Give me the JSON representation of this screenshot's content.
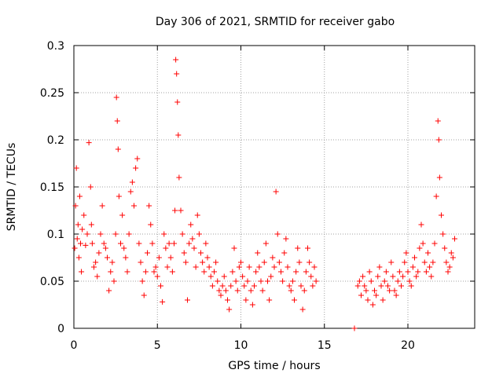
{
  "chart_data": {
    "type": "scatter",
    "title": "Day 306 of 2021, SRMTID for receiver gabo",
    "xlabel": "GPS time / hours",
    "ylabel": "SRMTID / TECUs",
    "xlim": [
      0,
      24
    ],
    "ylim": [
      0,
      0.3
    ],
    "xticks": [
      0,
      5,
      10,
      15,
      20
    ],
    "xtick_labels": [
      "0",
      "5",
      "10",
      "15",
      "20"
    ],
    "yticks": [
      0,
      0.05,
      0.1,
      0.15,
      0.2,
      0.25,
      0.3
    ],
    "ytick_labels": [
      "0",
      "0.05",
      "0.1",
      "0.15",
      "0.2",
      "0.25",
      "0.3"
    ],
    "grid": true,
    "marker": "+",
    "color": "#ff0000",
    "series": [
      {
        "name": "SRMTID",
        "points": [
          [
            0.05,
            0.085
          ],
          [
            0.1,
            0.13
          ],
          [
            0.15,
            0.17
          ],
          [
            0.2,
            0.095
          ],
          [
            0.25,
            0.11
          ],
          [
            0.3,
            0.075
          ],
          [
            0.35,
            0.14
          ],
          [
            0.4,
            0.09
          ],
          [
            0.45,
            0.06
          ],
          [
            0.5,
            0.105
          ],
          [
            0.6,
            0.12
          ],
          [
            0.7,
            0.088
          ],
          [
            0.8,
            0.1
          ],
          [
            0.9,
            0.197
          ],
          [
            1.0,
            0.15
          ],
          [
            1.05,
            0.11
          ],
          [
            1.1,
            0.09
          ],
          [
            1.2,
            0.065
          ],
          [
            1.3,
            0.07
          ],
          [
            1.4,
            0.055
          ],
          [
            1.5,
            0.08
          ],
          [
            1.6,
            0.1
          ],
          [
            1.7,
            0.13
          ],
          [
            1.8,
            0.09
          ],
          [
            1.9,
            0.085
          ],
          [
            2.0,
            0.075
          ],
          [
            2.1,
            0.04
          ],
          [
            2.2,
            0.06
          ],
          [
            2.3,
            0.07
          ],
          [
            2.4,
            0.05
          ],
          [
            2.5,
            0.1
          ],
          [
            2.55,
            0.245
          ],
          [
            2.6,
            0.22
          ],
          [
            2.65,
            0.19
          ],
          [
            2.7,
            0.14
          ],
          [
            2.8,
            0.09
          ],
          [
            2.9,
            0.12
          ],
          [
            3.0,
            0.085
          ],
          [
            3.1,
            0.075
          ],
          [
            3.2,
            0.06
          ],
          [
            3.3,
            0.1
          ],
          [
            3.4,
            0.145
          ],
          [
            3.5,
            0.155
          ],
          [
            3.6,
            0.13
          ],
          [
            3.7,
            0.17
          ],
          [
            3.8,
            0.18
          ],
          [
            3.9,
            0.09
          ],
          [
            4.0,
            0.07
          ],
          [
            4.1,
            0.05
          ],
          [
            4.2,
            0.035
          ],
          [
            4.3,
            0.06
          ],
          [
            4.4,
            0.08
          ],
          [
            4.5,
            0.13
          ],
          [
            4.6,
            0.11
          ],
          [
            4.7,
            0.09
          ],
          [
            4.8,
            0.06
          ],
          [
            4.9,
            0.065
          ],
          [
            5.0,
            0.055
          ],
          [
            5.1,
            0.075
          ],
          [
            5.2,
            0.045
          ],
          [
            5.3,
            0.028
          ],
          [
            5.4,
            0.1
          ],
          [
            5.5,
            0.085
          ],
          [
            5.6,
            0.065
          ],
          [
            5.7,
            0.09
          ],
          [
            5.8,
            0.075
          ],
          [
            5.9,
            0.06
          ],
          [
            6.0,
            0.09
          ],
          [
            6.05,
            0.125
          ],
          [
            6.1,
            0.285
          ],
          [
            6.15,
            0.27
          ],
          [
            6.2,
            0.24
          ],
          [
            6.25,
            0.205
          ],
          [
            6.3,
            0.16
          ],
          [
            6.4,
            0.125
          ],
          [
            6.5,
            0.1
          ],
          [
            6.6,
            0.08
          ],
          [
            6.7,
            0.07
          ],
          [
            6.8,
            0.03
          ],
          [
            6.9,
            0.09
          ],
          [
            7.0,
            0.11
          ],
          [
            7.1,
            0.095
          ],
          [
            7.2,
            0.085
          ],
          [
            7.3,
            0.065
          ],
          [
            7.4,
            0.12
          ],
          [
            7.5,
            0.1
          ],
          [
            7.6,
            0.08
          ],
          [
            7.7,
            0.07
          ],
          [
            7.8,
            0.06
          ],
          [
            7.9,
            0.09
          ],
          [
            8.0,
            0.075
          ],
          [
            8.1,
            0.065
          ],
          [
            8.2,
            0.055
          ],
          [
            8.3,
            0.045
          ],
          [
            8.4,
            0.06
          ],
          [
            8.5,
            0.07
          ],
          [
            8.6,
            0.05
          ],
          [
            8.7,
            0.04
          ],
          [
            8.8,
            0.035
          ],
          [
            8.9,
            0.045
          ],
          [
            9.0,
            0.055
          ],
          [
            9.1,
            0.04
          ],
          [
            9.2,
            0.03
          ],
          [
            9.3,
            0.02
          ],
          [
            9.4,
            0.045
          ],
          [
            9.5,
            0.06
          ],
          [
            9.6,
            0.085
          ],
          [
            9.7,
            0.05
          ],
          [
            9.8,
            0.04
          ],
          [
            9.9,
            0.065
          ],
          [
            10.0,
            0.07
          ],
          [
            10.1,
            0.055
          ],
          [
            10.2,
            0.045
          ],
          [
            10.3,
            0.03
          ],
          [
            10.4,
            0.05
          ],
          [
            10.5,
            0.065
          ],
          [
            10.6,
            0.04
          ],
          [
            10.7,
            0.025
          ],
          [
            10.8,
            0.045
          ],
          [
            10.9,
            0.06
          ],
          [
            11.0,
            0.08
          ],
          [
            11.1,
            0.065
          ],
          [
            11.2,
            0.05
          ],
          [
            11.3,
            0.04
          ],
          [
            11.4,
            0.07
          ],
          [
            11.5,
            0.09
          ],
          [
            11.6,
            0.05
          ],
          [
            11.7,
            0.03
          ],
          [
            11.8,
            0.055
          ],
          [
            11.9,
            0.075
          ],
          [
            12.0,
            0.065
          ],
          [
            12.1,
            0.145
          ],
          [
            12.2,
            0.1
          ],
          [
            12.3,
            0.07
          ],
          [
            12.4,
            0.06
          ],
          [
            12.5,
            0.05
          ],
          [
            12.6,
            0.08
          ],
          [
            12.7,
            0.095
          ],
          [
            12.8,
            0.065
          ],
          [
            12.9,
            0.045
          ],
          [
            13.0,
            0.04
          ],
          [
            13.1,
            0.05
          ],
          [
            13.2,
            0.03
          ],
          [
            13.3,
            0.06
          ],
          [
            13.4,
            0.085
          ],
          [
            13.5,
            0.07
          ],
          [
            13.6,
            0.045
          ],
          [
            13.7,
            0.02
          ],
          [
            13.8,
            0.04
          ],
          [
            13.9,
            0.06
          ],
          [
            14.0,
            0.085
          ],
          [
            14.1,
            0.07
          ],
          [
            14.2,
            0.055
          ],
          [
            14.3,
            0.045
          ],
          [
            14.4,
            0.065
          ],
          [
            14.5,
            0.05
          ],
          [
            16.8,
            0.0
          ],
          [
            17.0,
            0.045
          ],
          [
            17.1,
            0.05
          ],
          [
            17.2,
            0.035
          ],
          [
            17.3,
            0.055
          ],
          [
            17.4,
            0.045
          ],
          [
            17.5,
            0.04
          ],
          [
            17.6,
            0.03
          ],
          [
            17.7,
            0.06
          ],
          [
            17.8,
            0.05
          ],
          [
            17.9,
            0.025
          ],
          [
            18.0,
            0.04
          ],
          [
            18.1,
            0.035
          ],
          [
            18.2,
            0.055
          ],
          [
            18.3,
            0.065
          ],
          [
            18.4,
            0.045
          ],
          [
            18.5,
            0.03
          ],
          [
            18.6,
            0.05
          ],
          [
            18.7,
            0.06
          ],
          [
            18.8,
            0.045
          ],
          [
            18.9,
            0.04
          ],
          [
            19.0,
            0.07
          ],
          [
            19.1,
            0.055
          ],
          [
            19.2,
            0.04
          ],
          [
            19.3,
            0.035
          ],
          [
            19.4,
            0.05
          ],
          [
            19.5,
            0.06
          ],
          [
            19.6,
            0.045
          ],
          [
            19.7,
            0.055
          ],
          [
            19.8,
            0.07
          ],
          [
            19.9,
            0.08
          ],
          [
            20.0,
            0.06
          ],
          [
            20.1,
            0.05
          ],
          [
            20.2,
            0.045
          ],
          [
            20.3,
            0.065
          ],
          [
            20.4,
            0.075
          ],
          [
            20.5,
            0.055
          ],
          [
            20.6,
            0.06
          ],
          [
            20.7,
            0.085
          ],
          [
            20.8,
            0.11
          ],
          [
            20.9,
            0.09
          ],
          [
            21.0,
            0.07
          ],
          [
            21.1,
            0.06
          ],
          [
            21.2,
            0.08
          ],
          [
            21.3,
            0.065
          ],
          [
            21.4,
            0.055
          ],
          [
            21.5,
            0.07
          ],
          [
            21.6,
            0.09
          ],
          [
            21.7,
            0.14
          ],
          [
            21.8,
            0.22
          ],
          [
            21.85,
            0.2
          ],
          [
            21.9,
            0.16
          ],
          [
            22.0,
            0.12
          ],
          [
            22.1,
            0.1
          ],
          [
            22.2,
            0.085
          ],
          [
            22.3,
            0.07
          ],
          [
            22.4,
            0.06
          ],
          [
            22.5,
            0.065
          ],
          [
            22.6,
            0.08
          ],
          [
            22.7,
            0.075
          ],
          [
            22.8,
            0.095
          ]
        ]
      }
    ]
  }
}
